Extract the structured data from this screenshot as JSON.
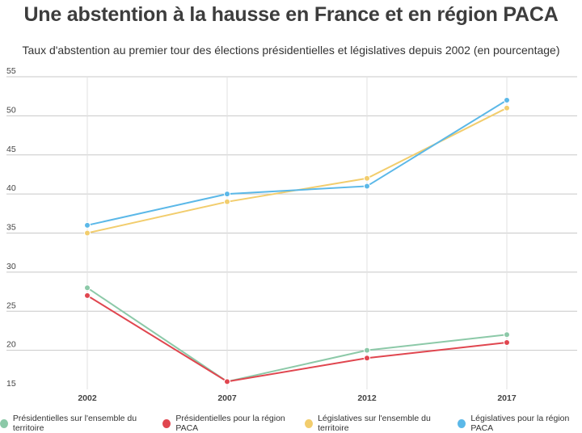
{
  "chart_data": {
    "type": "line",
    "title": "Une abstention à la hausse en France et en région PACA",
    "subtitle": "Taux d'abstention au premier tour des élections présidentielles et législatives depuis 2002 (en pourcentage)",
    "xlabel": "",
    "ylabel": "",
    "x": [
      "2002",
      "2007",
      "2012",
      "2017"
    ],
    "ylim": [
      15,
      55
    ],
    "yticks": [
      "55",
      "50",
      "45",
      "40",
      "35",
      "30",
      "25",
      "20",
      "15"
    ],
    "ytick_values": [
      55,
      50,
      45,
      40,
      35,
      30,
      25,
      20,
      15
    ],
    "grid": true,
    "legend_position": "bottom",
    "series": [
      {
        "name": "Présidentielles sur l'ensemble du territoire",
        "color": "#8cc9a8",
        "values": [
          28,
          16,
          20,
          22
        ]
      },
      {
        "name": "Présidentielles pour la région PACA",
        "color": "#e0464f",
        "values": [
          27,
          16,
          19,
          21
        ]
      },
      {
        "name": "Législatives sur l'ensemble du territoire",
        "color": "#f2cd6d",
        "values": [
          35,
          39,
          42,
          51
        ]
      },
      {
        "name": "Législatives pour la région PACA",
        "color": "#5bb8e8",
        "values": [
          36,
          40,
          41,
          52
        ]
      }
    ]
  }
}
